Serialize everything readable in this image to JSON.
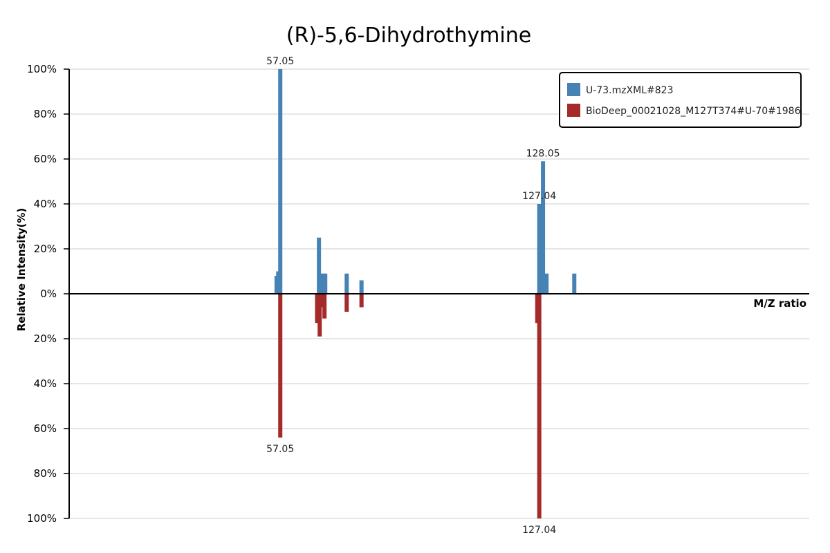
{
  "chart_data": {
    "type": "bar",
    "title": "(R)-5,6-Dihydrothymine",
    "xlabel": "M/Z ratio",
    "ylabel": "Relative Intensity(%)",
    "ylim": [
      -100,
      100
    ],
    "y_ticks": [
      "100%",
      "80%",
      "60%",
      "40%",
      "20%",
      "0%",
      "20%",
      "40%",
      "60%",
      "80%",
      "100%"
    ],
    "grid": true,
    "legend_position": "top-right",
    "xlim": [
      0,
      200
    ],
    "series": [
      {
        "name": "U-73.mzXML#823",
        "color": "#4682b4",
        "direction": "up",
        "peaks": [
          {
            "mz": 56.05,
            "intensity": 8
          },
          {
            "mz": 56.5,
            "intensity": 10
          },
          {
            "mz": 57.05,
            "intensity": 100,
            "label": "57.05"
          },
          {
            "mz": 67.5,
            "intensity": 25
          },
          {
            "mz": 68.5,
            "intensity": 9
          },
          {
            "mz": 69.2,
            "intensity": 9
          },
          {
            "mz": 75.0,
            "intensity": 9
          },
          {
            "mz": 79.0,
            "intensity": 6
          },
          {
            "mz": 127.04,
            "intensity": 40,
            "label": "127.04"
          },
          {
            "mz": 128.05,
            "intensity": 59,
            "label": "128.05"
          },
          {
            "mz": 129.0,
            "intensity": 9
          },
          {
            "mz": 136.5,
            "intensity": 9
          }
        ]
      },
      {
        "name": "BioDeep_00021028_M127T374#U-70#1986",
        "color": "#a52a2a",
        "direction": "down",
        "peaks": [
          {
            "mz": 57.05,
            "intensity": 64,
            "label": "57.05"
          },
          {
            "mz": 67.0,
            "intensity": 13
          },
          {
            "mz": 67.7,
            "intensity": 19
          },
          {
            "mz": 68.4,
            "intensity": 6
          },
          {
            "mz": 69.0,
            "intensity": 11
          },
          {
            "mz": 75.0,
            "intensity": 8
          },
          {
            "mz": 79.0,
            "intensity": 6
          },
          {
            "mz": 126.5,
            "intensity": 13
          },
          {
            "mz": 127.04,
            "intensity": 100,
            "label": "127.04"
          }
        ]
      }
    ]
  }
}
